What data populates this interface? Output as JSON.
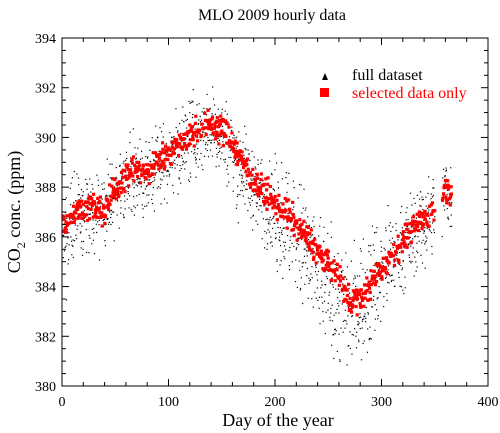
{
  "chart_data": {
    "type": "scatter",
    "title": "MLO 2009 hourly data",
    "xlabel": "Day of the year",
    "ylabel_parts": {
      "pre": "CO",
      "sub": "2",
      "post": " conc. (ppm)"
    },
    "xlim": [
      0,
      400
    ],
    "ylim": [
      380,
      394
    ],
    "xticks": [
      0,
      100,
      200,
      300,
      400
    ],
    "yticks": [
      380,
      382,
      384,
      386,
      388,
      390,
      392,
      394
    ],
    "grid": false,
    "legend": {
      "placement": "top-right"
    },
    "series": [
      {
        "name": "full dataset",
        "marker": "triangle",
        "color": "#000000",
        "description_trend": [
          [
            1,
            386.2
          ],
          [
            10,
            386.8
          ],
          [
            20,
            387.1
          ],
          [
            30,
            387.0
          ],
          [
            40,
            386.9
          ],
          [
            50,
            387.8
          ],
          [
            60,
            388.4
          ],
          [
            70,
            388.6
          ],
          [
            80,
            388.3
          ],
          [
            90,
            389.0
          ],
          [
            100,
            389.2
          ],
          [
            110,
            389.6
          ],
          [
            120,
            390.0
          ],
          [
            130,
            390.2
          ],
          [
            140,
            390.4
          ],
          [
            150,
            390.1
          ],
          [
            160,
            389.5
          ],
          [
            170,
            388.7
          ],
          [
            180,
            388.0
          ],
          [
            190,
            387.5
          ],
          [
            200,
            387.0
          ],
          [
            210,
            386.6
          ],
          [
            220,
            386.0
          ],
          [
            230,
            385.3
          ],
          [
            240,
            384.6
          ],
          [
            250,
            384.0
          ],
          [
            260,
            383.4
          ],
          [
            270,
            383.1
          ],
          [
            280,
            383.4
          ],
          [
            290,
            384.0
          ],
          [
            300,
            384.6
          ],
          [
            310,
            385.2
          ],
          [
            320,
            385.7
          ],
          [
            330,
            386.2
          ],
          [
            340,
            386.7
          ],
          [
            350,
            386.9
          ],
          [
            360,
            387.8
          ],
          [
            366,
            387.7
          ]
        ],
        "scatter_ppm": 1.6
      },
      {
        "name": "selected data only",
        "marker": "square",
        "color": "#ff0000",
        "description_trend": [
          [
            1,
            386.4
          ],
          [
            10,
            386.9
          ],
          [
            20,
            387.2
          ],
          [
            30,
            387.2
          ],
          [
            40,
            387.0
          ],
          [
            50,
            387.9
          ],
          [
            60,
            388.5
          ],
          [
            70,
            388.7
          ],
          [
            80,
            388.5
          ],
          [
            90,
            389.1
          ],
          [
            100,
            389.4
          ],
          [
            110,
            389.8
          ],
          [
            120,
            390.1
          ],
          [
            130,
            390.3
          ],
          [
            140,
            390.6
          ],
          [
            150,
            390.3
          ],
          [
            160,
            389.8
          ],
          [
            170,
            389.0
          ],
          [
            180,
            388.3
          ],
          [
            190,
            387.8
          ],
          [
            200,
            387.3
          ],
          [
            210,
            387.0
          ],
          [
            220,
            386.5
          ],
          [
            230,
            386.0
          ],
          [
            240,
            385.4
          ],
          [
            250,
            384.9
          ],
          [
            260,
            384.3
          ],
          [
            270,
            383.4
          ],
          [
            280,
            383.5
          ],
          [
            290,
            384.1
          ],
          [
            300,
            384.7
          ],
          [
            310,
            385.3
          ],
          [
            320,
            385.8
          ],
          [
            330,
            386.3
          ],
          [
            340,
            386.8
          ],
          [
            350,
            387.0
          ],
          [
            360,
            388.0
          ],
          [
            366,
            387.6
          ]
        ],
        "scatter_ppm": 0.45
      }
    ]
  }
}
